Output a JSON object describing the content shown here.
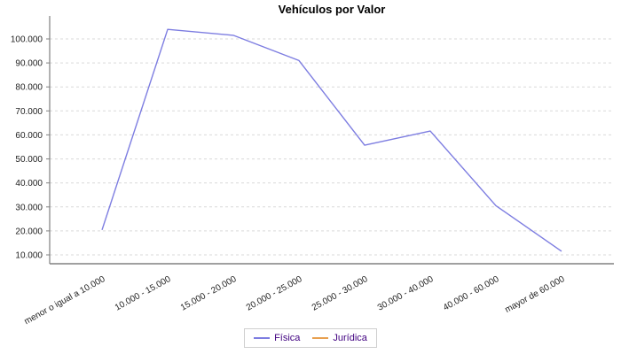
{
  "title": "Vehículos por Valor",
  "chart_data": {
    "type": "line",
    "title": "Vehículos por Valor",
    "xlabel": "",
    "ylabel": "",
    "categories": [
      "menor o igual a 10.000",
      "10.000 - 15.000",
      "15.000 - 20.000",
      "20.000 - 25.000",
      "25.000 - 30.000",
      "30.000 - 40.000",
      "40.000 - 60.000",
      "mayor de 60.000"
    ],
    "series": [
      {
        "name": "Física",
        "slug": "fisica",
        "color": "#7d7de1",
        "values": [
          20400,
          104000,
          101500,
          91000,
          55700,
          61600,
          30500,
          11500
        ]
      },
      {
        "name": "Jurídica",
        "slug": "juridica",
        "color": "#e8a050",
        "values": []
      }
    ],
    "yticks": [
      10000,
      20000,
      30000,
      40000,
      50000,
      60000,
      70000,
      80000,
      90000,
      100000
    ],
    "ytick_labels": [
      "10.000",
      "20.000",
      "30.000",
      "40.000",
      "50.000",
      "60.000",
      "70.000",
      "80.000",
      "90.000",
      "100.000"
    ],
    "ylim": [
      6300,
      109600
    ],
    "grid": "horizontal-dashed",
    "legend_position": "bottom"
  },
  "legend": {
    "items": [
      {
        "label": "Física",
        "color": "#7d7de1"
      },
      {
        "label": "Jurídica",
        "color": "#e8a050"
      }
    ]
  },
  "colors": {
    "background": "#ffffff",
    "axis": "#808080",
    "gridline": "#d9d9d9",
    "tick_text": "#222222",
    "legend_text": "#400080",
    "legend_border": "#cfcfcf"
  }
}
